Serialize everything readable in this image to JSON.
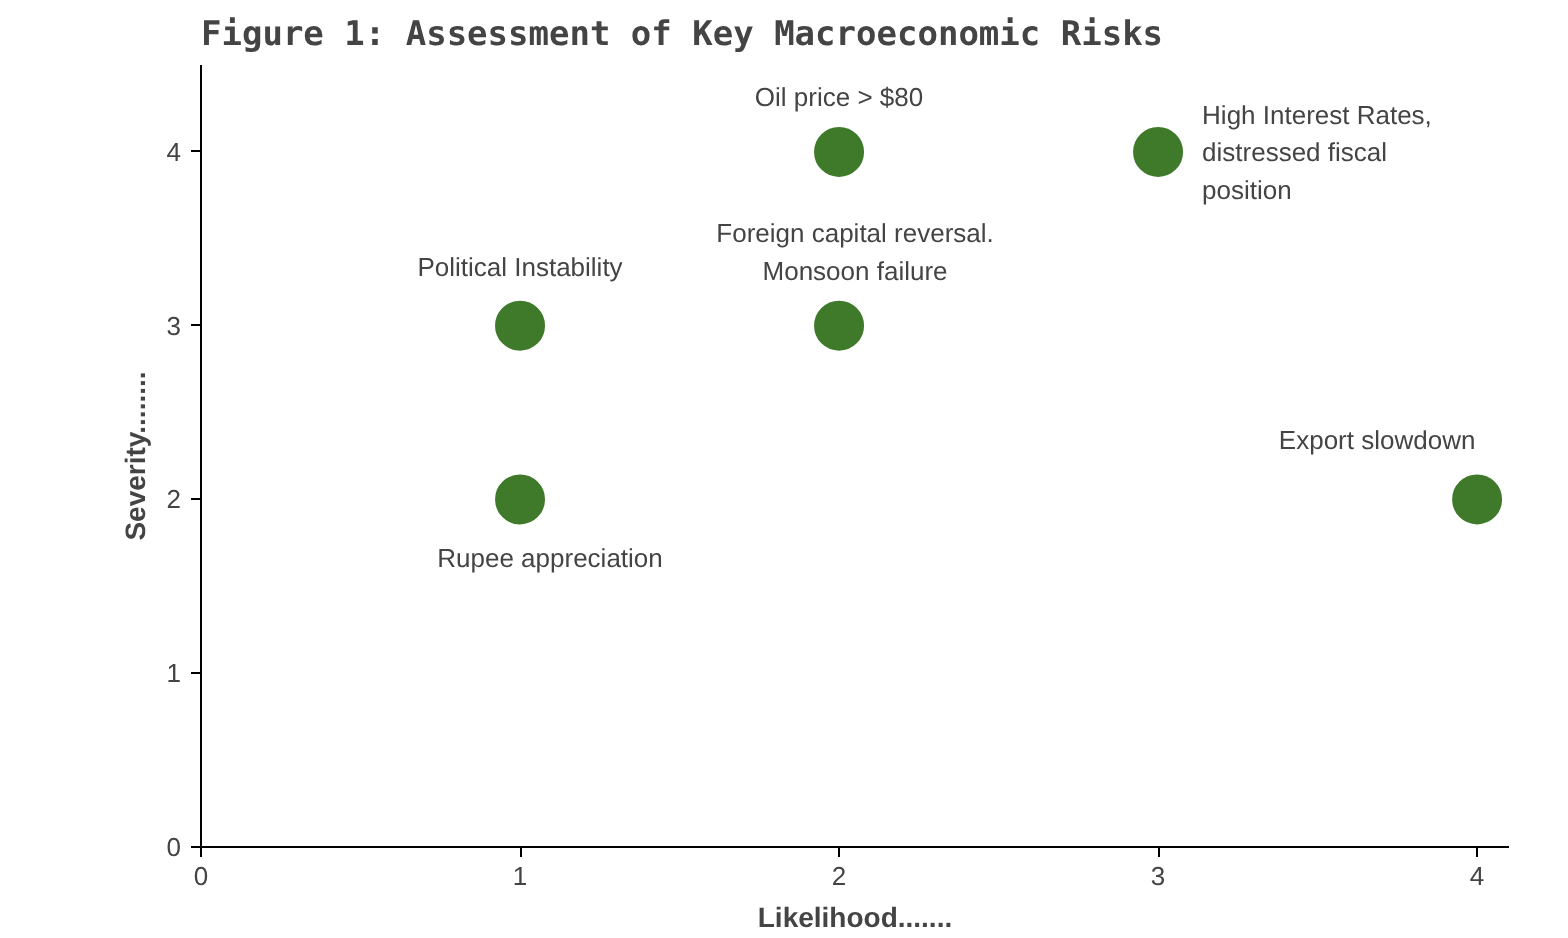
{
  "chart_data": {
    "type": "scatter",
    "title": "Figure 1: Assessment of Key Macroeconomic Risks",
    "xlabel": "Likelihood.......",
    "ylabel": "Severity........",
    "x": [
      1,
      1,
      2,
      2,
      3,
      4
    ],
    "series": [
      {
        "color": "#3f7a2a",
        "values": [
          3,
          2,
          4,
          3,
          4,
          2
        ]
      }
    ],
    "marker": "circle",
    "grid": false,
    "xlim": [
      0,
      4.1
    ],
    "ylim": [
      0,
      4.5
    ],
    "xticks": [
      0,
      1,
      2,
      3,
      4
    ],
    "yticks": [
      0,
      1,
      2,
      3,
      4
    ],
    "annotations": [
      {
        "text": "Political Instability",
        "x": 1,
        "y": 3
      },
      {
        "text": "Rupee appreciation",
        "x": 1,
        "y": 2
      },
      {
        "text": "Oil price > $80",
        "x": 2,
        "y": 4
      },
      {
        "text": "Foreign capital reversal.\nMonsoon failure",
        "x": 2,
        "y": 3
      },
      {
        "text": "High Interest Rates,\ndistressed fiscal\nposition",
        "x": 3,
        "y": 4
      },
      {
        "text": "Export slowdown",
        "x": 4,
        "y": 2
      }
    ]
  }
}
